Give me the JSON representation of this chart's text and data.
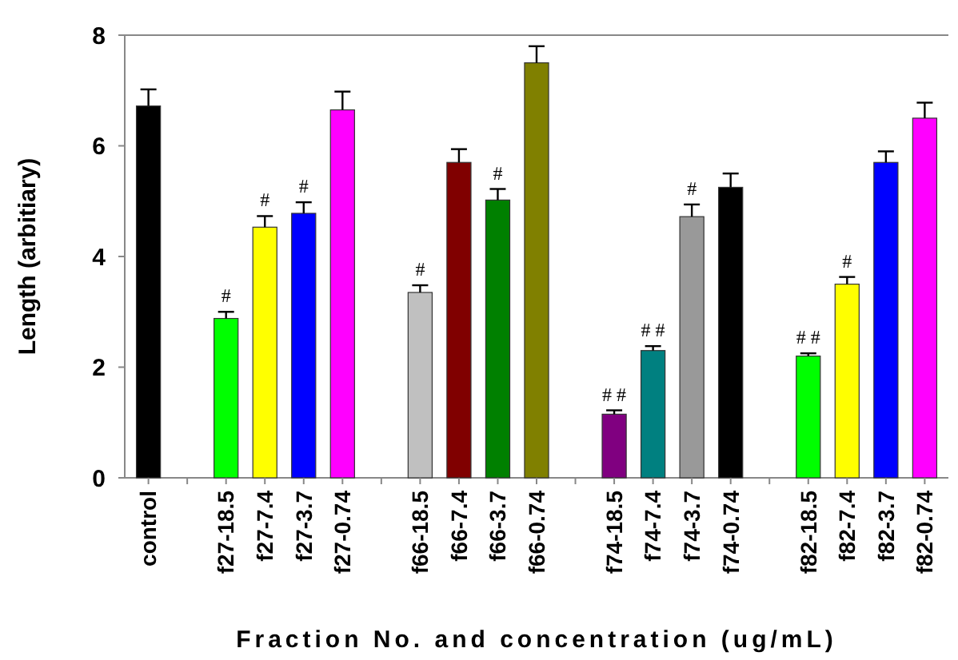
{
  "chart_data": {
    "type": "bar",
    "xlabel": "Fraction No. and concentration (ug/mL)",
    "ylabel": "Length (arbitiary)",
    "categories": [
      "control",
      null,
      "f27-18.5",
      "f27-7.4",
      "f27-3.7",
      "f27-0.74",
      null,
      "f66-18.5",
      "f66-7.4",
      "f66-3.7",
      "f66-0.74",
      null,
      "f74-18.5",
      "f74-7.4",
      "f74-3.7",
      "f74-0.74",
      null,
      "f82-18.5",
      "f82-7.4",
      "f82-3.7",
      "f82-0.74"
    ],
    "values": [
      6.72,
      null,
      2.88,
      4.53,
      4.78,
      6.65,
      null,
      3.35,
      5.7,
      5.02,
      7.5,
      null,
      1.15,
      2.3,
      4.72,
      5.25,
      null,
      2.2,
      3.5,
      5.7,
      6.5
    ],
    "errors": [
      0.3,
      null,
      0.12,
      0.2,
      0.2,
      0.33,
      null,
      0.13,
      0.24,
      0.2,
      0.3,
      null,
      0.07,
      0.08,
      0.22,
      0.25,
      null,
      0.05,
      0.13,
      0.2,
      0.28
    ],
    "colors": [
      "#000000",
      null,
      "#00ff00",
      "#ffff00",
      "#0000ff",
      "#ff00ff",
      null,
      "#c0c0c0",
      "#800000",
      "#008000",
      "#808000",
      null,
      "#800080",
      "#008080",
      "#999999",
      "#000000",
      null,
      "#00ff00",
      "#ffff00",
      "#0000ff",
      "#ff00ff"
    ],
    "ylim": [
      0,
      8
    ],
    "yticks": [
      0,
      2,
      4,
      6,
      8
    ],
    "grid": false,
    "annotations": [
      {
        "text": "#",
        "x": "f27-18.5",
        "y": 3.0
      },
      {
        "text": "#",
        "x": "f27-7.4",
        "y": 4.73
      },
      {
        "text": "#",
        "x": "f27-3.7",
        "y": 4.98
      },
      {
        "text": "#",
        "x": "f66-18.5",
        "y": 3.48
      },
      {
        "text": "#",
        "x": "f66-3.7",
        "y": 5.22
      },
      {
        "text": "# #",
        "x": "f74-18.5",
        "y": 1.22
      },
      {
        "text": "# #",
        "x": "f74-7.4",
        "y": 2.38
      },
      {
        "text": "#",
        "x": "f74-3.7",
        "y": 4.94
      },
      {
        "text": "# #",
        "x": "f82-18.5",
        "y": 2.25
      },
      {
        "text": "#",
        "x": "f82-7.4",
        "y": 3.63
      }
    ]
  }
}
